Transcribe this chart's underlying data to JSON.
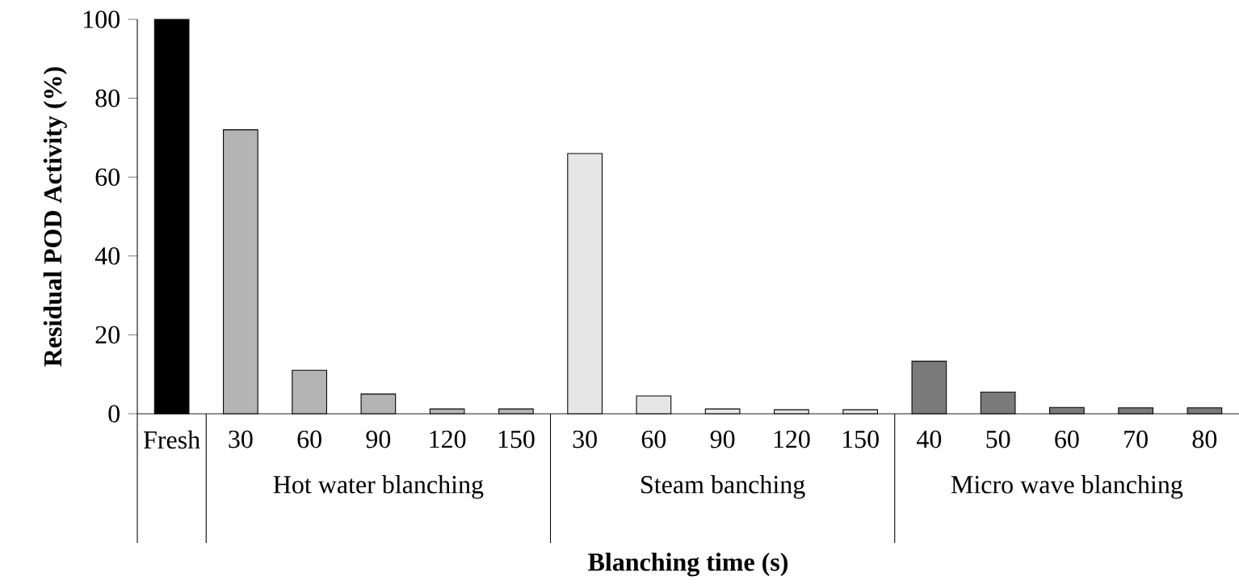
{
  "chart_data": {
    "type": "bar",
    "xlabel": "Blanching time (s)",
    "ylabel": "Residual POD Activity (%)",
    "categories": [
      "Fresh",
      "30",
      "60",
      "90",
      "120",
      "150",
      "30",
      "60",
      "90",
      "120",
      "150",
      "40",
      "50",
      "60",
      "70",
      "80"
    ],
    "values": [
      100,
      72,
      11,
      5,
      1.2,
      1.2,
      66,
      4.5,
      1.2,
      1,
      1,
      13.3,
      5.5,
      1.6,
      1.5,
      1.5
    ],
    "colors": [
      "#000000",
      "#b4b4b4",
      "#b4b4b4",
      "#b4b4b4",
      "#b4b4b4",
      "#b4b4b4",
      "#e6e6e6",
      "#e6e6e6",
      "#e6e6e6",
      "#e6e6e6",
      "#e6e6e6",
      "#7a7a7a",
      "#7a7a7a",
      "#7a7a7a",
      "#7a7a7a",
      "#7a7a7a"
    ],
    "annotations": [
      "Hot water blanching",
      "Steam banching",
      "Micro wave blanching"
    ],
    "ylim": [
      0,
      100
    ],
    "yticks": [
      0,
      20,
      40,
      60,
      80,
      100
    ],
    "grid": false
  }
}
